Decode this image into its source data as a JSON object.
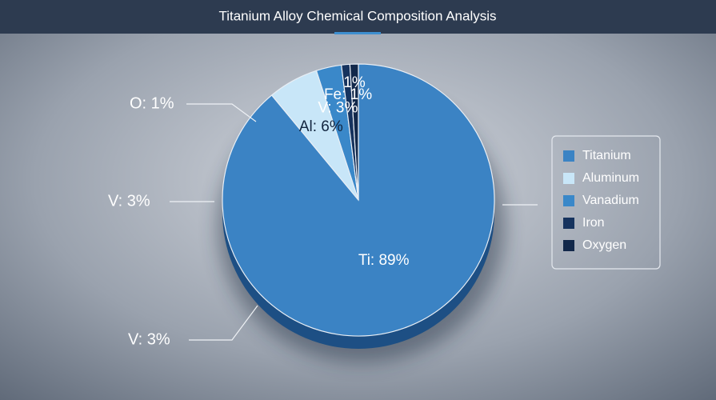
{
  "chart_data": {
    "type": "pie",
    "title": "Titanium Alloy Chemical Composition Analysis",
    "categories": [
      "Titanium",
      "Aluminum",
      "Vanadium",
      "Iron",
      "Oxygen"
    ],
    "values": [
      89,
      6,
      3,
      1,
      1
    ],
    "value_labels": [
      "Ti: 89%",
      "Al: 6%",
      "V: 3%",
      "Fe: 1%",
      "1%"
    ],
    "colors": [
      "#3b83c4",
      "#c8e6f8",
      "#3a88c9",
      "#16335e",
      "#12284a"
    ],
    "legend": "right",
    "annotations": [
      "O: 1%",
      "V: 3%",
      "V: 3%"
    ]
  }
}
